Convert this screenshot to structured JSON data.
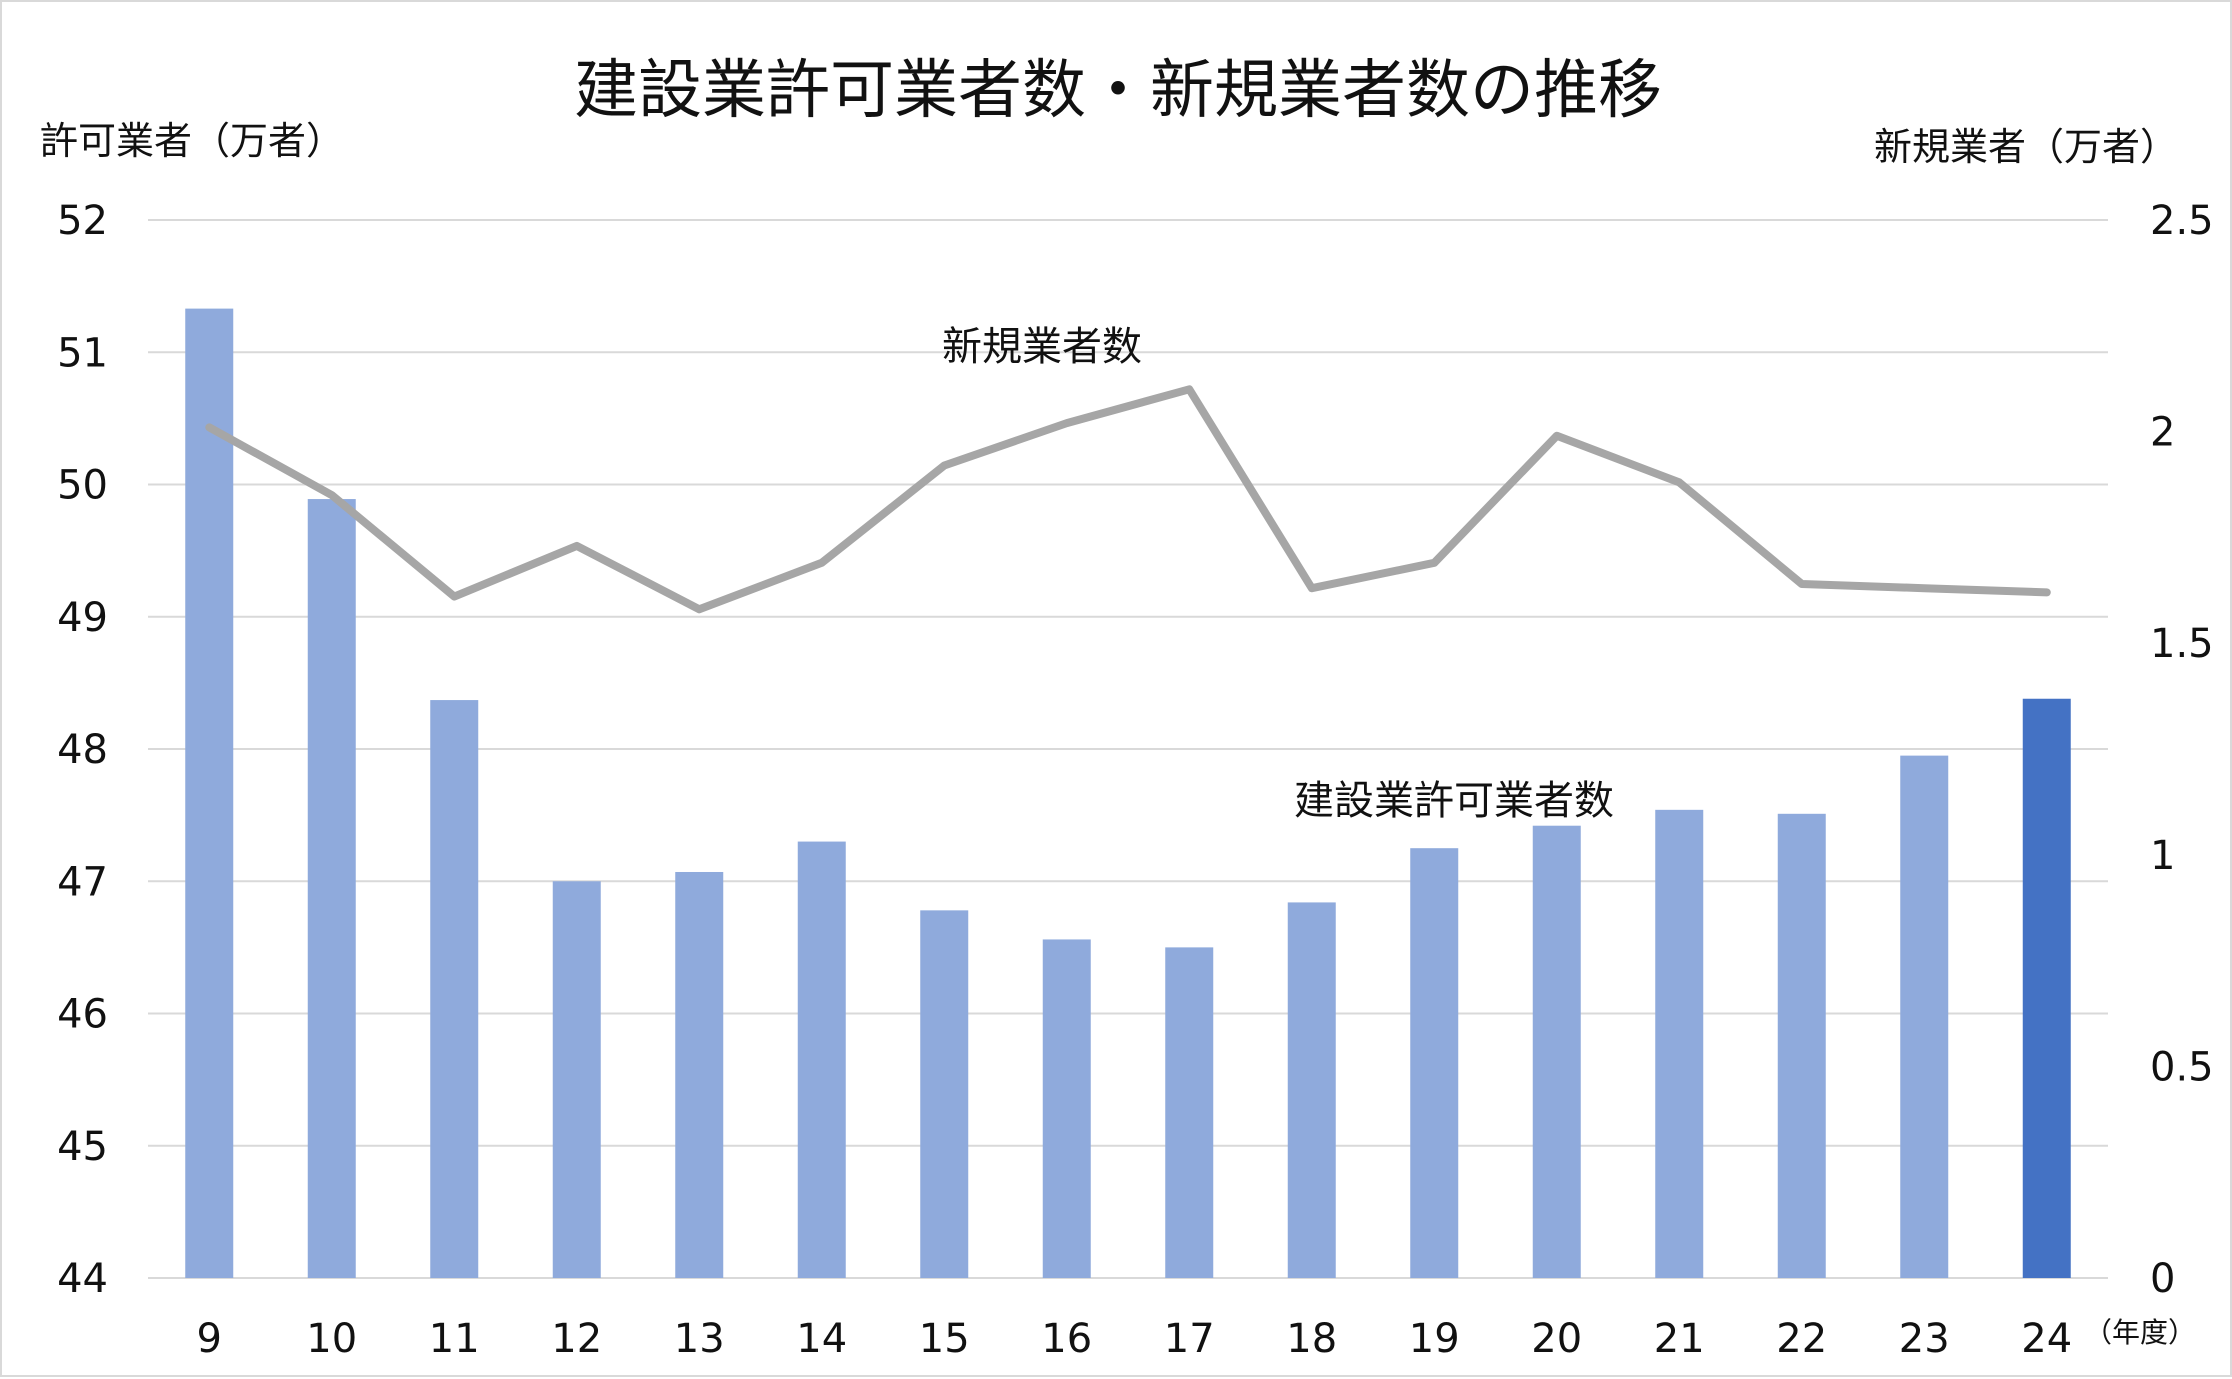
{
  "chart_data": {
    "type": "bar+line",
    "title": "建設業許可業者数・新規業者数の推移",
    "categories": [
      "9",
      "10",
      "11",
      "12",
      "13",
      "14",
      "15",
      "16",
      "17",
      "18",
      "19",
      "20",
      "21",
      "22",
      "23",
      "24"
    ],
    "x_unit": "（年度）",
    "y_left": {
      "label": "許可業者（万者）",
      "range": [
        44,
        52
      ],
      "ticks": [
        44,
        45,
        46,
        47,
        48,
        49,
        50,
        51,
        52
      ]
    },
    "y_right": {
      "label": "新規業者（万者）",
      "range": [
        0,
        2.5
      ],
      "ticks": [
        "0",
        "0.5",
        "1",
        "1.5",
        "2",
        "2.5"
      ]
    },
    "grid": true,
    "series": [
      {
        "name": "建設業許可業者数",
        "type": "bar",
        "axis": "left",
        "values": [
          51.33,
          49.89,
          48.37,
          47.0,
          47.07,
          47.3,
          46.78,
          46.56,
          46.5,
          46.84,
          47.25,
          47.42,
          47.54,
          47.51,
          47.95,
          48.38
        ],
        "color": "#8faadc",
        "highlight_index": 15,
        "highlight_color": "#4472c4"
      },
      {
        "name": "新規業者数",
        "type": "line",
        "axis": "right",
        "values": [
          2.01,
          1.85,
          1.61,
          1.73,
          1.58,
          1.69,
          1.92,
          2.02,
          2.1,
          1.63,
          1.69,
          1.99,
          1.88,
          1.64,
          1.63,
          1.62
        ],
        "color": "#a6a6a6"
      }
    ],
    "annotations": [
      {
        "text": "新規業者数",
        "series": "新規業者数"
      },
      {
        "text": "建設業許可業者数",
        "series": "建設業許可業者数"
      }
    ]
  }
}
